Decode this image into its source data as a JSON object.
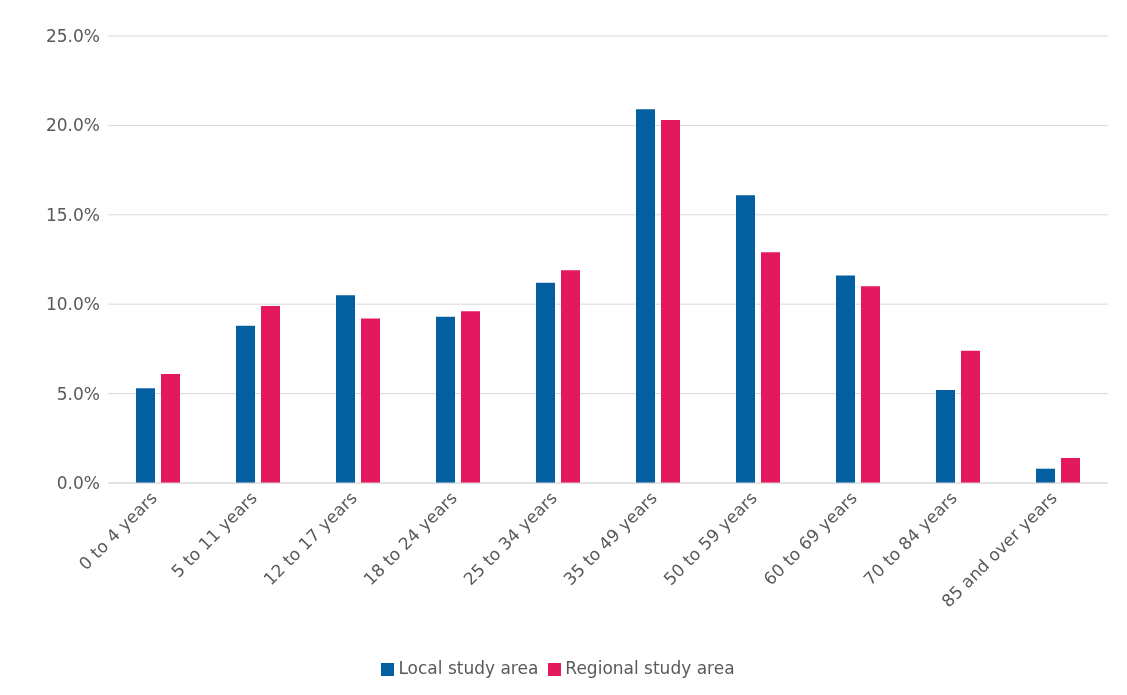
{
  "chart_data": {
    "type": "bar",
    "categories": [
      "0 to 4 years",
      "5 to 11 years",
      "12 to 17 years",
      "18 to 24 years",
      "25 to 34 years",
      "35 to 49 years",
      "50 to 59 years",
      "60 to 69 years",
      "70 to 84 years",
      "85 and over years"
    ],
    "series": [
      {
        "name": "Local study area",
        "color": "#035fa0",
        "values": [
          5.3,
          8.8,
          10.5,
          9.3,
          11.2,
          20.9,
          16.1,
          11.6,
          5.2,
          0.8
        ]
      },
      {
        "name": "Regional study area",
        "color": "#e3185f",
        "values": [
          6.1,
          9.9,
          9.2,
          9.6,
          11.9,
          20.3,
          12.9,
          11.0,
          7.4,
          1.4
        ]
      }
    ],
    "ylim": [
      0,
      25
    ],
    "yticks": [
      {
        "value": 0,
        "label": "0.0%"
      },
      {
        "value": 5,
        "label": "5.0%"
      },
      {
        "value": 10,
        "label": "10.0%"
      },
      {
        "value": 15,
        "label": "15.0%"
      },
      {
        "value": 20,
        "label": "20.0%"
      },
      {
        "value": 25,
        "label": "25.0%"
      }
    ],
    "grid": "y",
    "legend": "bottom"
  }
}
